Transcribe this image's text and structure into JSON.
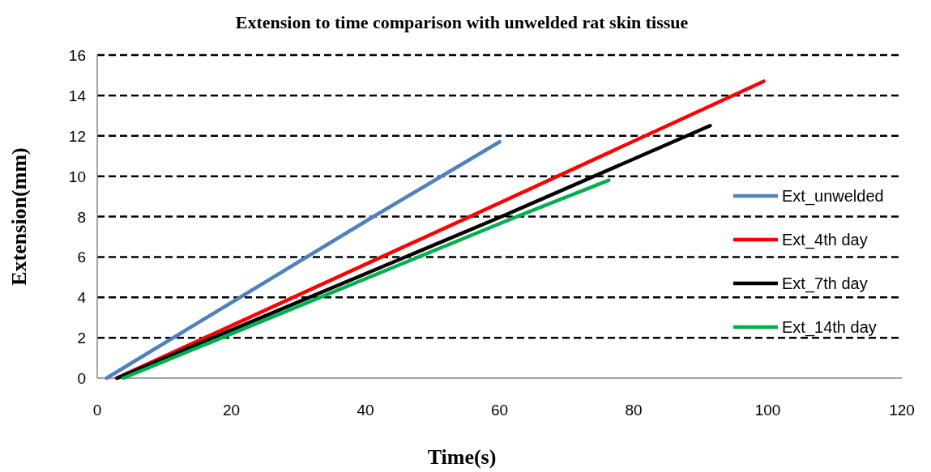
{
  "chart_data": {
    "type": "line",
    "title": "Extension to time comparison with unwelded rat skin tissue",
    "xlabel": "Time(s)",
    "ylabel": "Extension(mm)",
    "xlim": [
      0,
      120
    ],
    "xticks": [
      0,
      20,
      40,
      60,
      80,
      100,
      120
    ],
    "ylim": [
      0,
      16
    ],
    "yticks": [
      0,
      2,
      4,
      6,
      8,
      10,
      12,
      14,
      16
    ],
    "grid": "y",
    "legend": "right",
    "marker": "none",
    "series": [
      {
        "name": "Ext_unwelded",
        "color": "#4f81bd",
        "x": [
          1.4,
          41.2,
          60
        ],
        "values": [
          0,
          8,
          11.7
        ]
      },
      {
        "name": "Ext_4th day",
        "color": "#ff0000",
        "x": [
          2.9,
          55.6,
          99.4
        ],
        "values": [
          0,
          8,
          14.7
        ]
      },
      {
        "name": "Ext_7th day",
        "color": "#000000",
        "x": [
          3,
          60.3,
          91.4
        ],
        "values": [
          0,
          8,
          12.5
        ]
      },
      {
        "name": "Ext_14th day",
        "color": "#00b050",
        "x": [
          3.9,
          62.6,
          76.3
        ],
        "values": [
          0,
          8,
          9.8
        ]
      }
    ]
  }
}
